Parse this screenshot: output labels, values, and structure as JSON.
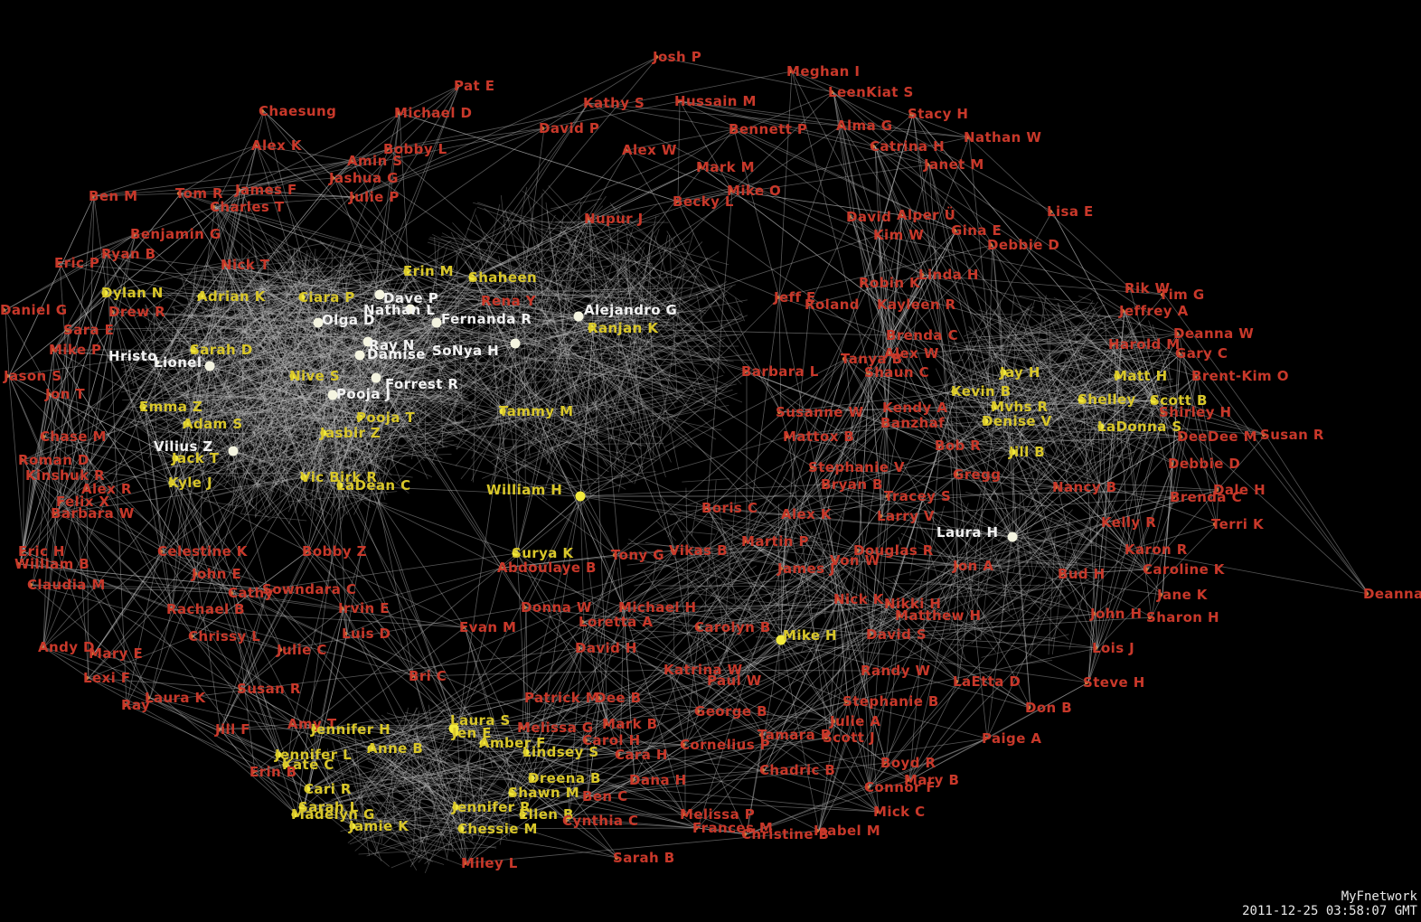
{
  "colors": {
    "background": "#000000",
    "edge": "#bfbfbf",
    "label_periphery": "#c8382a",
    "label_hub": "#d9c72a",
    "label_top": "#f2f2f2",
    "node_hub": "#f2ea3c",
    "node_small": "#d2793a"
  },
  "footer": {
    "app_name": "MyFnetwork",
    "timestamp": "2011-12-25 03:58:07 GMT"
  },
  "nodes": [
    {
      "id": "n1",
      "label": "Josh P",
      "tier": "periphery"
    },
    {
      "id": "n2",
      "label": "Meghan I",
      "tier": "periphery"
    },
    {
      "id": "n3",
      "label": "Pat E",
      "tier": "periphery"
    },
    {
      "id": "n4",
      "label": "LeenKiat S",
      "tier": "periphery"
    },
    {
      "id": "n5",
      "label": "Chaesung",
      "tier": "periphery"
    },
    {
      "id": "n6",
      "label": "Michael D",
      "tier": "periphery"
    },
    {
      "id": "n7",
      "label": "Kathy S",
      "tier": "periphery"
    },
    {
      "id": "n8",
      "label": "Hussain M",
      "tier": "periphery"
    },
    {
      "id": "n9",
      "label": "Stacy H",
      "tier": "periphery"
    },
    {
      "id": "n10",
      "label": "Alma G",
      "tier": "periphery"
    },
    {
      "id": "n11",
      "label": "David P",
      "tier": "periphery"
    },
    {
      "id": "n12",
      "label": "Bennett P",
      "tier": "periphery"
    },
    {
      "id": "n13",
      "label": "Nathan W",
      "tier": "periphery"
    },
    {
      "id": "n14",
      "label": "Alex K",
      "tier": "periphery"
    },
    {
      "id": "n15",
      "label": "Bobby L",
      "tier": "periphery"
    },
    {
      "id": "n16",
      "label": "Alex W",
      "tier": "periphery"
    },
    {
      "id": "n17",
      "label": "Catrina H",
      "tier": "periphery"
    },
    {
      "id": "n18",
      "label": "Amin S",
      "tier": "periphery"
    },
    {
      "id": "n19",
      "label": "Mark M",
      "tier": "periphery"
    },
    {
      "id": "n20",
      "label": "Janet M",
      "tier": "periphery"
    },
    {
      "id": "n21",
      "label": "Jashua G",
      "tier": "periphery"
    },
    {
      "id": "n22",
      "label": "Ben M",
      "tier": "periphery"
    },
    {
      "id": "n23",
      "label": "Tom R",
      "tier": "periphery"
    },
    {
      "id": "n24",
      "label": "James F",
      "tier": "periphery"
    },
    {
      "id": "n25",
      "label": "Julie P",
      "tier": "periphery"
    },
    {
      "id": "n26",
      "label": "Mike O",
      "tier": "periphery"
    },
    {
      "id": "n27",
      "label": "Charles T",
      "tier": "periphery"
    },
    {
      "id": "n28",
      "label": "Becky L",
      "tier": "periphery"
    },
    {
      "id": "n29",
      "label": "David",
      "tier": "periphery"
    },
    {
      "id": "n30",
      "label": "Alper Ü",
      "tier": "periphery"
    },
    {
      "id": "n31",
      "label": "Lisa E",
      "tier": "periphery"
    },
    {
      "id": "n32",
      "label": "Nupur J",
      "tier": "periphery"
    },
    {
      "id": "n33",
      "label": "Benjamin G",
      "tier": "periphery"
    },
    {
      "id": "n34",
      "label": "Gina E",
      "tier": "periphery"
    },
    {
      "id": "n35",
      "label": "Kim W",
      "tier": "periphery"
    },
    {
      "id": "n36",
      "label": "Debbie D",
      "tier": "periphery"
    },
    {
      "id": "n37",
      "label": "Ryan B",
      "tier": "periphery"
    },
    {
      "id": "n38",
      "label": "Eric P",
      "tier": "periphery"
    },
    {
      "id": "n39",
      "label": "Nick T",
      "tier": "periphery"
    },
    {
      "id": "n40",
      "label": "Erin M",
      "tier": "hub"
    },
    {
      "id": "n41",
      "label": "Shaheen",
      "tier": "hub"
    },
    {
      "id": "n42",
      "label": "Linda H",
      "tier": "periphery"
    },
    {
      "id": "n43",
      "label": "Robin K",
      "tier": "periphery"
    },
    {
      "id": "n44",
      "label": "Rik W",
      "tier": "periphery"
    },
    {
      "id": "n45",
      "label": "Tim G",
      "tier": "periphery"
    },
    {
      "id": "n46",
      "label": "Dylan N",
      "tier": "hub"
    },
    {
      "id": "n47",
      "label": "Adrian K",
      "tier": "hub"
    },
    {
      "id": "n48",
      "label": "Ciara P",
      "tier": "hub"
    },
    {
      "id": "n49",
      "label": "Dave P",
      "tier": "top"
    },
    {
      "id": "n50",
      "label": "Rena Y",
      "tier": "periphery"
    },
    {
      "id": "n51",
      "label": "Jeff E",
      "tier": "periphery"
    },
    {
      "id": "n52",
      "label": "Roland",
      "tier": "periphery"
    },
    {
      "id": "n53",
      "label": "Kayleen R",
      "tier": "periphery"
    },
    {
      "id": "n54",
      "label": "Daniel G",
      "tier": "periphery"
    },
    {
      "id": "n55",
      "label": "Drew R",
      "tier": "periphery"
    },
    {
      "id": "n56",
      "label": "Nathan L",
      "tier": "top"
    },
    {
      "id": "n57",
      "label": "Alejandro G",
      "tier": "top"
    },
    {
      "id": "n58",
      "label": "Jeffrey A",
      "tier": "periphery"
    },
    {
      "id": "n59",
      "label": "Olga D",
      "tier": "top"
    },
    {
      "id": "n60",
      "label": "Fernanda R",
      "tier": "top"
    },
    {
      "id": "n61",
      "label": "Deanna W",
      "tier": "periphery"
    },
    {
      "id": "n62",
      "label": "Sara E",
      "tier": "periphery"
    },
    {
      "id": "n63",
      "label": "Ray N",
      "tier": "top"
    },
    {
      "id": "n64",
      "label": "Ranjan K",
      "tier": "hub"
    },
    {
      "id": "n65",
      "label": "Brenda C",
      "tier": "periphery"
    },
    {
      "id": "n66",
      "label": "Harold M",
      "tier": "periphery"
    },
    {
      "id": "n67",
      "label": "Mike P",
      "tier": "periphery"
    },
    {
      "id": "n68",
      "label": "Sarah D",
      "tier": "hub"
    },
    {
      "id": "n69",
      "label": "SoNya H",
      "tier": "top"
    },
    {
      "id": "n70",
      "label": "Alex W",
      "tier": "periphery"
    },
    {
      "id": "n71",
      "label": "Gary C",
      "tier": "periphery"
    },
    {
      "id": "n72",
      "label": "Hristo",
      "tier": "top"
    },
    {
      "id": "n73",
      "label": "Lionel",
      "tier": "top"
    },
    {
      "id": "n74",
      "label": "Damise",
      "tier": "top"
    },
    {
      "id": "n75",
      "label": "Tanya B",
      "tier": "periphery"
    },
    {
      "id": "n76",
      "label": "Jason S",
      "tier": "periphery"
    },
    {
      "id": "n77",
      "label": "Nive S",
      "tier": "hub"
    },
    {
      "id": "n78",
      "label": "Forrest R",
      "tier": "top"
    },
    {
      "id": "n79",
      "label": "Barbara L",
      "tier": "periphery"
    },
    {
      "id": "n80",
      "label": "Shaun C",
      "tier": "periphery"
    },
    {
      "id": "n81",
      "label": "Jay H",
      "tier": "hub"
    },
    {
      "id": "n82",
      "label": "Matt H",
      "tier": "hub"
    },
    {
      "id": "n83",
      "label": "Brent-Kim O",
      "tier": "periphery"
    },
    {
      "id": "n84",
      "label": "Jon T",
      "tier": "periphery"
    },
    {
      "id": "n85",
      "label": "Pooja J",
      "tier": "top"
    },
    {
      "id": "n86",
      "label": "Kevin B",
      "tier": "hub"
    },
    {
      "id": "n87",
      "label": "Shelley",
      "tier": "hub"
    },
    {
      "id": "n88",
      "label": "Scott B",
      "tier": "hub"
    },
    {
      "id": "n89",
      "label": "Emma Z",
      "tier": "hub"
    },
    {
      "id": "n90",
      "label": "Tammy M",
      "tier": "hub"
    },
    {
      "id": "n91",
      "label": "Kendy A",
      "tier": "periphery"
    },
    {
      "id": "n92",
      "label": "Mvhs R",
      "tier": "hub"
    },
    {
      "id": "n93",
      "label": "Shirley H",
      "tier": "periphery"
    },
    {
      "id": "n94",
      "label": "Adam S",
      "tier": "hub"
    },
    {
      "id": "n95",
      "label": "Pooja T",
      "tier": "hub"
    },
    {
      "id": "n96",
      "label": "Susanne W",
      "tier": "periphery"
    },
    {
      "id": "n97",
      "label": "Banzhaf",
      "tier": "periphery"
    },
    {
      "id": "n98",
      "label": "Denise V",
      "tier": "hub"
    },
    {
      "id": "n99",
      "label": "LaDonna S",
      "tier": "hub"
    },
    {
      "id": "n100",
      "label": "Chase M",
      "tier": "periphery"
    },
    {
      "id": "n101",
      "label": "Jasbir Z",
      "tier": "hub"
    },
    {
      "id": "n102",
      "label": "Mattox B",
      "tier": "periphery"
    },
    {
      "id": "n103",
      "label": "Susan R",
      "tier": "periphery"
    },
    {
      "id": "n104",
      "label": "DeeDee M",
      "tier": "periphery"
    },
    {
      "id": "n105",
      "label": "Vilius Z",
      "tier": "top"
    },
    {
      "id": "n106",
      "label": "Bob R",
      "tier": "periphery"
    },
    {
      "id": "n107",
      "label": "Jill B",
      "tier": "hub"
    },
    {
      "id": "n108",
      "label": "Jack T",
      "tier": "hub"
    },
    {
      "id": "n109",
      "label": "Roman D",
      "tier": "periphery"
    },
    {
      "id": "n110",
      "label": "Stephanie V",
      "tier": "periphery"
    },
    {
      "id": "n111",
      "label": "Debbie D",
      "tier": "periphery"
    },
    {
      "id": "n112",
      "label": "Kinshuk R",
      "tier": "periphery"
    },
    {
      "id": "n113",
      "label": "Vic Birk R",
      "tier": "hub"
    },
    {
      "id": "n114",
      "label": "LaDean C",
      "tier": "hub"
    },
    {
      "id": "n115",
      "label": "Gregg",
      "tier": "periphery"
    },
    {
      "id": "n116",
      "label": "Alex R",
      "tier": "periphery"
    },
    {
      "id": "n117",
      "label": "Kyle J",
      "tier": "hub"
    },
    {
      "id": "n118",
      "label": "William H",
      "tier": "hub"
    },
    {
      "id": "n119",
      "label": "Bryan B",
      "tier": "periphery"
    },
    {
      "id": "n120",
      "label": "Nancy B",
      "tier": "periphery"
    },
    {
      "id": "n121",
      "label": "Dale H",
      "tier": "periphery"
    },
    {
      "id": "n122",
      "label": "Felix X",
      "tier": "periphery"
    },
    {
      "id": "n123",
      "label": "Tracey S",
      "tier": "periphery"
    },
    {
      "id": "n124",
      "label": "Brenda C",
      "tier": "periphery"
    },
    {
      "id": "n125",
      "label": "Barbara W",
      "tier": "periphery"
    },
    {
      "id": "n126",
      "label": "Boris C",
      "tier": "periphery"
    },
    {
      "id": "n127",
      "label": "Alex K",
      "tier": "periphery"
    },
    {
      "id": "n128",
      "label": "Larry V",
      "tier": "periphery"
    },
    {
      "id": "n129",
      "label": "Kelly R",
      "tier": "periphery"
    },
    {
      "id": "n130",
      "label": "Terri K",
      "tier": "periphery"
    },
    {
      "id": "n131",
      "label": "Laura H",
      "tier": "top"
    },
    {
      "id": "n132",
      "label": "Martin P",
      "tier": "periphery"
    },
    {
      "id": "n133",
      "label": "Eric H",
      "tier": "periphery"
    },
    {
      "id": "n134",
      "label": "Celestine K",
      "tier": "periphery"
    },
    {
      "id": "n135",
      "label": "Bobby Z",
      "tier": "periphery"
    },
    {
      "id": "n136",
      "label": "Surya K",
      "tier": "hub"
    },
    {
      "id": "n137",
      "label": "Tony G",
      "tier": "periphery"
    },
    {
      "id": "n138",
      "label": "Vikas B",
      "tier": "periphery"
    },
    {
      "id": "n139",
      "label": "Douglas R",
      "tier": "periphery"
    },
    {
      "id": "n140",
      "label": "Karon R",
      "tier": "periphery"
    },
    {
      "id": "n141",
      "label": "William B",
      "tier": "periphery"
    },
    {
      "id": "n142",
      "label": "Abdoulaye B",
      "tier": "periphery"
    },
    {
      "id": "n143",
      "label": "James J",
      "tier": "periphery"
    },
    {
      "id": "n144",
      "label": "Von W",
      "tier": "periphery"
    },
    {
      "id": "n145",
      "label": "Jon A",
      "tier": "periphery"
    },
    {
      "id": "n146",
      "label": "Caroline K",
      "tier": "periphery"
    },
    {
      "id": "n147",
      "label": "John E",
      "tier": "periphery"
    },
    {
      "id": "n148",
      "label": "Claudia M",
      "tier": "periphery"
    },
    {
      "id": "n149",
      "label": "Bud H",
      "tier": "periphery"
    },
    {
      "id": "n150",
      "label": "Jane K",
      "tier": "periphery"
    },
    {
      "id": "n151",
      "label": "Deanna",
      "tier": "periphery"
    },
    {
      "id": "n152",
      "label": "Cathy",
      "tier": "periphery"
    },
    {
      "id": "n153",
      "label": "Sowndara C",
      "tier": "periphery"
    },
    {
      "id": "n154",
      "label": "Nick K",
      "tier": "periphery"
    },
    {
      "id": "n155",
      "label": "Rachael B",
      "tier": "periphery"
    },
    {
      "id": "n156",
      "label": "Irvin E",
      "tier": "periphery"
    },
    {
      "id": "n157",
      "label": "Donna W",
      "tier": "periphery"
    },
    {
      "id": "n158",
      "label": "Michael H",
      "tier": "periphery"
    },
    {
      "id": "n159",
      "label": "Nikki H",
      "tier": "periphery"
    },
    {
      "id": "n160",
      "label": "John H",
      "tier": "periphery"
    },
    {
      "id": "n161",
      "label": "Matthew H",
      "tier": "periphery"
    },
    {
      "id": "n162",
      "label": "Sharon H",
      "tier": "periphery"
    },
    {
      "id": "n163",
      "label": "Loretta A",
      "tier": "periphery"
    },
    {
      "id": "n164",
      "label": "Chrissy L",
      "tier": "periphery"
    },
    {
      "id": "n165",
      "label": "Luis D",
      "tier": "periphery"
    },
    {
      "id": "n166",
      "label": "Evan M",
      "tier": "periphery"
    },
    {
      "id": "n167",
      "label": "Carolyn B",
      "tier": "periphery"
    },
    {
      "id": "n168",
      "label": "Mike H",
      "tier": "hub"
    },
    {
      "id": "n169",
      "label": "David S",
      "tier": "periphery"
    },
    {
      "id": "n170",
      "label": "Andy D",
      "tier": "periphery"
    },
    {
      "id": "n171",
      "label": "Mary E",
      "tier": "periphery"
    },
    {
      "id": "n172",
      "label": "Julie C",
      "tier": "periphery"
    },
    {
      "id": "n173",
      "label": "David H",
      "tier": "periphery"
    },
    {
      "id": "n174",
      "label": "Lois J",
      "tier": "periphery"
    },
    {
      "id": "n175",
      "label": "Katrina W",
      "tier": "periphery"
    },
    {
      "id": "n176",
      "label": "Randy W",
      "tier": "periphery"
    },
    {
      "id": "n177",
      "label": "Lexi F",
      "tier": "periphery"
    },
    {
      "id": "n178",
      "label": "Bri C",
      "tier": "periphery"
    },
    {
      "id": "n179",
      "label": "Paul W",
      "tier": "periphery"
    },
    {
      "id": "n180",
      "label": "LaEtta D",
      "tier": "periphery"
    },
    {
      "id": "n181",
      "label": "Steve H",
      "tier": "periphery"
    },
    {
      "id": "n182",
      "label": "Susan R",
      "tier": "periphery"
    },
    {
      "id": "n183",
      "label": "Laura K",
      "tier": "periphery"
    },
    {
      "id": "n184",
      "label": "Patrick M",
      "tier": "periphery"
    },
    {
      "id": "n185",
      "label": "Dee B",
      "tier": "periphery"
    },
    {
      "id": "n186",
      "label": "Stephanie B",
      "tier": "periphery"
    },
    {
      "id": "n187",
      "label": "Ray",
      "tier": "periphery"
    },
    {
      "id": "n188",
      "label": "Don B",
      "tier": "periphery"
    },
    {
      "id": "n189",
      "label": "George B",
      "tier": "periphery"
    },
    {
      "id": "n190",
      "label": "Julie A",
      "tier": "periphery"
    },
    {
      "id": "n191",
      "label": "Jill F",
      "tier": "periphery"
    },
    {
      "id": "n192",
      "label": "Laura S",
      "tier": "hub"
    },
    {
      "id": "n193",
      "label": "Melissa G",
      "tier": "periphery"
    },
    {
      "id": "n194",
      "label": "Mark B",
      "tier": "periphery"
    },
    {
      "id": "n195",
      "label": "Paige A",
      "tier": "periphery"
    },
    {
      "id": "n196",
      "label": "Amy T",
      "tier": "periphery"
    },
    {
      "id": "n197",
      "label": "Jennifer H",
      "tier": "hub"
    },
    {
      "id": "n198",
      "label": "Jen E",
      "tier": "hub"
    },
    {
      "id": "n199",
      "label": "Amber F",
      "tier": "hub"
    },
    {
      "id": "n200",
      "label": "Carol H",
      "tier": "periphery"
    },
    {
      "id": "n201",
      "label": "Tamara P",
      "tier": "periphery"
    },
    {
      "id": "n202",
      "label": "Scott J",
      "tier": "periphery"
    },
    {
      "id": "n203",
      "label": "Jennifer L",
      "tier": "hub"
    },
    {
      "id": "n204",
      "label": "Anne B",
      "tier": "hub"
    },
    {
      "id": "n205",
      "label": "Lindsey S",
      "tier": "hub"
    },
    {
      "id": "n206",
      "label": "Cara H",
      "tier": "periphery"
    },
    {
      "id": "n207",
      "label": "Cornelius P",
      "tier": "periphery"
    },
    {
      "id": "n208",
      "label": "Boyd R",
      "tier": "periphery"
    },
    {
      "id": "n209",
      "label": "Kate C",
      "tier": "hub"
    },
    {
      "id": "n210",
      "label": "Erin B",
      "tier": "periphery"
    },
    {
      "id": "n211",
      "label": "Dreena B",
      "tier": "hub"
    },
    {
      "id": "n212",
      "label": "Dana H",
      "tier": "periphery"
    },
    {
      "id": "n213",
      "label": "Chadric B",
      "tier": "periphery"
    },
    {
      "id": "n214",
      "label": "Mary B",
      "tier": "periphery"
    },
    {
      "id": "n215",
      "label": "Cari R",
      "tier": "hub"
    },
    {
      "id": "n216",
      "label": "Shawn M",
      "tier": "hub"
    },
    {
      "id": "n217",
      "label": "Ben C",
      "tier": "periphery"
    },
    {
      "id": "n218",
      "label": "Connor F",
      "tier": "periphery"
    },
    {
      "id": "n219",
      "label": "Sarah L",
      "tier": "hub"
    },
    {
      "id": "n220",
      "label": "Jennifer R",
      "tier": "hub"
    },
    {
      "id": "n221",
      "label": "Ellen B",
      "tier": "hub"
    },
    {
      "id": "n222",
      "label": "Mick C",
      "tier": "periphery"
    },
    {
      "id": "n223",
      "label": "Madelyn G",
      "tier": "hub"
    },
    {
      "id": "n224",
      "label": "Cynthia C",
      "tier": "periphery"
    },
    {
      "id": "n225",
      "label": "Melissa P",
      "tier": "periphery"
    },
    {
      "id": "n226",
      "label": "Jamie K",
      "tier": "hub"
    },
    {
      "id": "n227",
      "label": "Chessie M",
      "tier": "hub"
    },
    {
      "id": "n228",
      "label": "Frances M",
      "tier": "periphery"
    },
    {
      "id": "n229",
      "label": "Christine B",
      "tier": "periphery"
    },
    {
      "id": "n230",
      "label": "Isabel M",
      "tier": "periphery"
    },
    {
      "id": "n231",
      "label": "Miley L",
      "tier": "periphery"
    },
    {
      "id": "n232",
      "label": "Sarah B",
      "tier": "periphery"
    }
  ]
}
